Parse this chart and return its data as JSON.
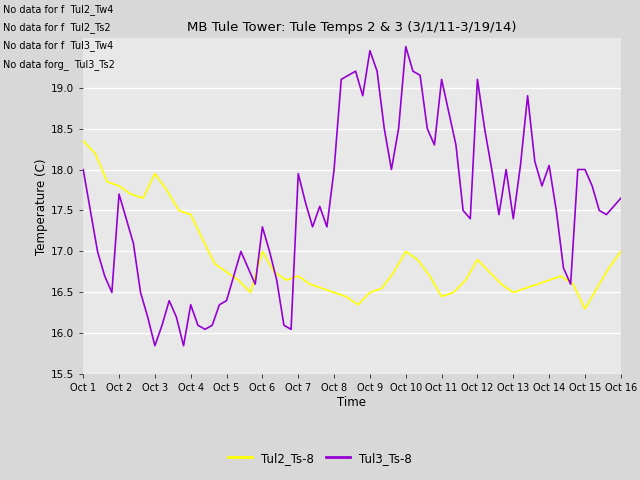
{
  "title": "MB Tule Tower: Tule Temps 2 & 3 (3/1/11-3/19/14)",
  "xlabel": "Time",
  "ylabel": "Temperature (C)",
  "xlim": [
    0,
    15
  ],
  "ylim": [
    15.5,
    19.6
  ],
  "yticks": [
    15.5,
    16.0,
    16.5,
    17.0,
    17.5,
    18.0,
    18.5,
    19.0
  ],
  "xtick_labels": [
    "Oct 1",
    "Oct 2",
    "Oct 3",
    "Oct 4",
    "Oct 5",
    "Oct 6",
    "Oct 7",
    "Oct 8",
    "Oct 9",
    "Oct 10",
    "Oct 11",
    "Oct 12",
    "Oct 13",
    "Oct 14",
    "Oct 15",
    "Oct 16"
  ],
  "color_tul2": "#ffff00",
  "color_tul3": "#9400d3",
  "legend_labels": [
    "Tul2_Ts-8",
    "Tul3_Ts-8"
  ],
  "bg_color": "#e8e8e8",
  "fig_bg_color": "#d8d8d8",
  "no_data_texts": [
    "No data for f  Tul2_Tw4",
    "No data for f  Tul2_Ts2",
    "No data for f  Tul3_Tw4",
    "No data forg_  Tul3_Ts2"
  ],
  "tul2_x": [
    0.0,
    0.33,
    0.67,
    1.0,
    1.33,
    1.67,
    2.0,
    2.33,
    2.67,
    3.0,
    3.33,
    3.67,
    4.0,
    4.33,
    4.67,
    5.0,
    5.33,
    5.67,
    6.0,
    6.33,
    6.67,
    7.0,
    7.33,
    7.67,
    8.0,
    8.33,
    8.67,
    9.0,
    9.33,
    9.67,
    10.0,
    10.33,
    10.67,
    11.0,
    11.33,
    11.67,
    12.0,
    12.33,
    12.67,
    13.0,
    13.33,
    13.67,
    14.0,
    14.33,
    14.67,
    15.0
  ],
  "tul2_y": [
    18.35,
    18.2,
    17.85,
    17.8,
    17.7,
    17.65,
    17.95,
    17.75,
    17.5,
    17.45,
    17.15,
    16.85,
    16.75,
    16.65,
    16.5,
    17.0,
    16.75,
    16.65,
    16.7,
    16.6,
    16.55,
    16.5,
    16.45,
    16.35,
    16.5,
    16.55,
    16.75,
    17.0,
    16.9,
    16.7,
    16.45,
    16.5,
    16.65,
    16.9,
    16.75,
    16.6,
    16.5,
    16.55,
    16.6,
    16.65,
    16.7,
    16.6,
    16.3,
    16.55,
    16.8,
    17.0
  ],
  "tul3_x": [
    0.0,
    0.2,
    0.4,
    0.6,
    0.8,
    1.0,
    1.2,
    1.4,
    1.6,
    1.8,
    2.0,
    2.2,
    2.4,
    2.6,
    2.8,
    3.0,
    3.2,
    3.4,
    3.6,
    3.8,
    4.0,
    4.2,
    4.4,
    4.6,
    4.8,
    5.0,
    5.2,
    5.4,
    5.6,
    5.8,
    6.0,
    6.2,
    6.4,
    6.6,
    6.8,
    7.0,
    7.2,
    7.4,
    7.6,
    7.8,
    8.0,
    8.2,
    8.4,
    8.6,
    8.8,
    9.0,
    9.2,
    9.4,
    9.6,
    9.8,
    10.0,
    10.2,
    10.4,
    10.6,
    10.8,
    11.0,
    11.2,
    11.4,
    11.6,
    11.8,
    12.0,
    12.2,
    12.4,
    12.6,
    12.8,
    13.0,
    13.2,
    13.4,
    13.6,
    13.8,
    14.0,
    14.2,
    14.4,
    14.6,
    14.8,
    15.0
  ],
  "tul3_y": [
    18.0,
    17.5,
    17.0,
    16.7,
    16.5,
    17.7,
    17.4,
    17.1,
    16.5,
    16.2,
    15.85,
    16.1,
    16.4,
    16.2,
    15.85,
    16.35,
    16.1,
    16.05,
    16.1,
    16.35,
    16.4,
    16.7,
    17.0,
    16.8,
    16.6,
    17.3,
    17.0,
    16.65,
    16.1,
    16.05,
    17.95,
    17.6,
    17.3,
    17.55,
    17.3,
    18.0,
    19.1,
    19.15,
    19.2,
    18.9,
    19.45,
    19.2,
    18.5,
    18.0,
    18.5,
    19.5,
    19.2,
    19.15,
    18.5,
    18.3,
    19.1,
    18.7,
    18.3,
    17.5,
    17.4,
    19.1,
    18.5,
    18.0,
    17.45,
    18.0,
    17.4,
    18.05,
    18.9,
    18.1,
    17.8,
    18.05,
    17.5,
    16.8,
    16.6,
    18.0,
    18.0,
    17.8,
    17.5,
    17.45,
    17.55,
    17.65
  ]
}
